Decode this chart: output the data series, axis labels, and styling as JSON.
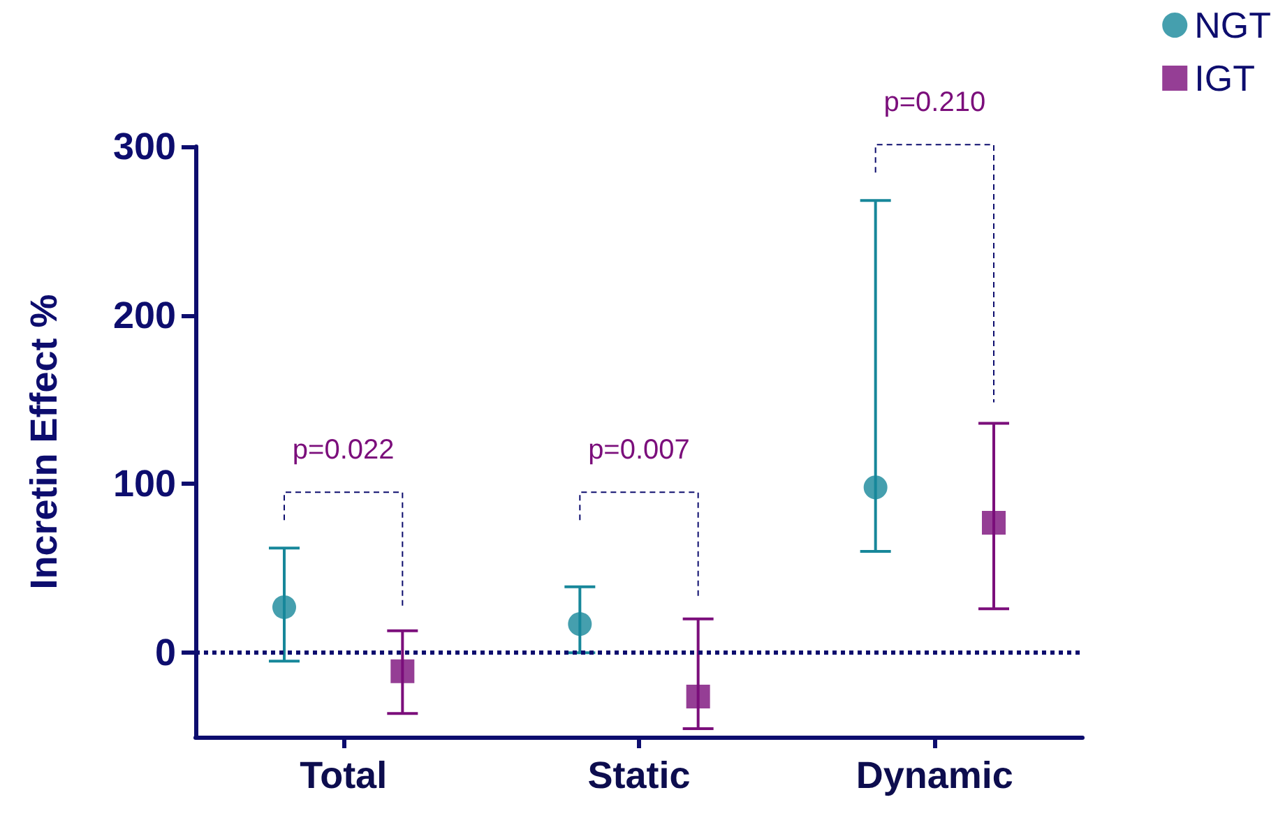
{
  "chart_data": {
    "type": "scatter",
    "ylabel": "Incretin Effect %",
    "categories": [
      "Total",
      "Static",
      "Dynamic"
    ],
    "series": [
      {
        "name": "NGT",
        "color": "#17879a",
        "marker": "circle",
        "values": [
          27,
          17,
          98
        ],
        "errors": [
          [
            -5,
            62
          ],
          [
            0,
            39
          ],
          [
            60,
            268
          ]
        ]
      },
      {
        "name": "IGT",
        "color": "#7b0e7b",
        "marker": "square",
        "values": [
          -11,
          -26,
          77
        ],
        "errors": [
          [
            -36,
            13
          ],
          [
            -45,
            20
          ],
          [
            26,
            136
          ]
        ]
      }
    ],
    "ylim": [
      -50,
      300
    ],
    "yticks": [
      0,
      100,
      200,
      300
    ],
    "grid": false,
    "legend": "top right",
    "ref_lines": [
      {
        "axis": "y",
        "value": 0,
        "color": "#0d0d6e",
        "line_style": "dotted"
      }
    ],
    "annotations": [
      "p=0.022",
      "p=0.007",
      "p=0.210"
    ]
  }
}
